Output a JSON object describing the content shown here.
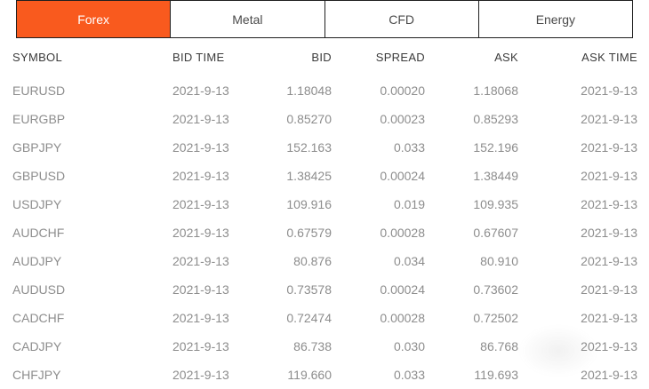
{
  "tabbar": {
    "tabs": [
      {
        "label": "Forex",
        "active": true
      },
      {
        "label": "Metal",
        "active": false
      },
      {
        "label": "CFD",
        "active": false
      },
      {
        "label": "Energy",
        "active": false
      }
    ]
  },
  "quotes_table": {
    "columns": [
      "SYMBOL",
      "BID TIME",
      "BID",
      "SPREAD",
      "ASK",
      "ASK TIME"
    ],
    "rows": [
      {
        "symbol": "EURUSD",
        "bid_time": "2021-9-13",
        "bid": "1.18048",
        "spread": "0.00020",
        "ask": "1.18068",
        "ask_time": "2021-9-13"
      },
      {
        "symbol": "EURGBP",
        "bid_time": "2021-9-13",
        "bid": "0.85270",
        "spread": "0.00023",
        "ask": "0.85293",
        "ask_time": "2021-9-13"
      },
      {
        "symbol": "GBPJPY",
        "bid_time": "2021-9-13",
        "bid": "152.163",
        "spread": "0.033",
        "ask": "152.196",
        "ask_time": "2021-9-13"
      },
      {
        "symbol": "GBPUSD",
        "bid_time": "2021-9-13",
        "bid": "1.38425",
        "spread": "0.00024",
        "ask": "1.38449",
        "ask_time": "2021-9-13"
      },
      {
        "symbol": "USDJPY",
        "bid_time": "2021-9-13",
        "bid": "109.916",
        "spread": "0.019",
        "ask": "109.935",
        "ask_time": "2021-9-13"
      },
      {
        "symbol": "AUDCHF",
        "bid_time": "2021-9-13",
        "bid": "0.67579",
        "spread": "0.00028",
        "ask": "0.67607",
        "ask_time": "2021-9-13"
      },
      {
        "symbol": "AUDJPY",
        "bid_time": "2021-9-13",
        "bid": "80.876",
        "spread": "0.034",
        "ask": "80.910",
        "ask_time": "2021-9-13"
      },
      {
        "symbol": "AUDUSD",
        "bid_time": "2021-9-13",
        "bid": "0.73578",
        "spread": "0.00024",
        "ask": "0.73602",
        "ask_time": "2021-9-13"
      },
      {
        "symbol": "CADCHF",
        "bid_time": "2021-9-13",
        "bid": "0.72474",
        "spread": "0.00028",
        "ask": "0.72502",
        "ask_time": "2021-9-13"
      },
      {
        "symbol": "CADJPY",
        "bid_time": "2021-9-13",
        "bid": "86.738",
        "spread": "0.030",
        "ask": "86.768",
        "ask_time": "2021-9-13"
      },
      {
        "symbol": "CHFJPY",
        "bid_time": "2021-9-13",
        "bid": "119.660",
        "spread": "0.033",
        "ask": "119.693",
        "ask_time": "2021-9-13"
      }
    ]
  },
  "colors": {
    "accent": "#f95a1e",
    "tab_border": "#1f1f1f",
    "active_tab_text": "#ffffff",
    "inactive_tab_text": "#4a4a4a",
    "header_text": "#3b3b3b",
    "body_text": "#8d8d8d"
  }
}
